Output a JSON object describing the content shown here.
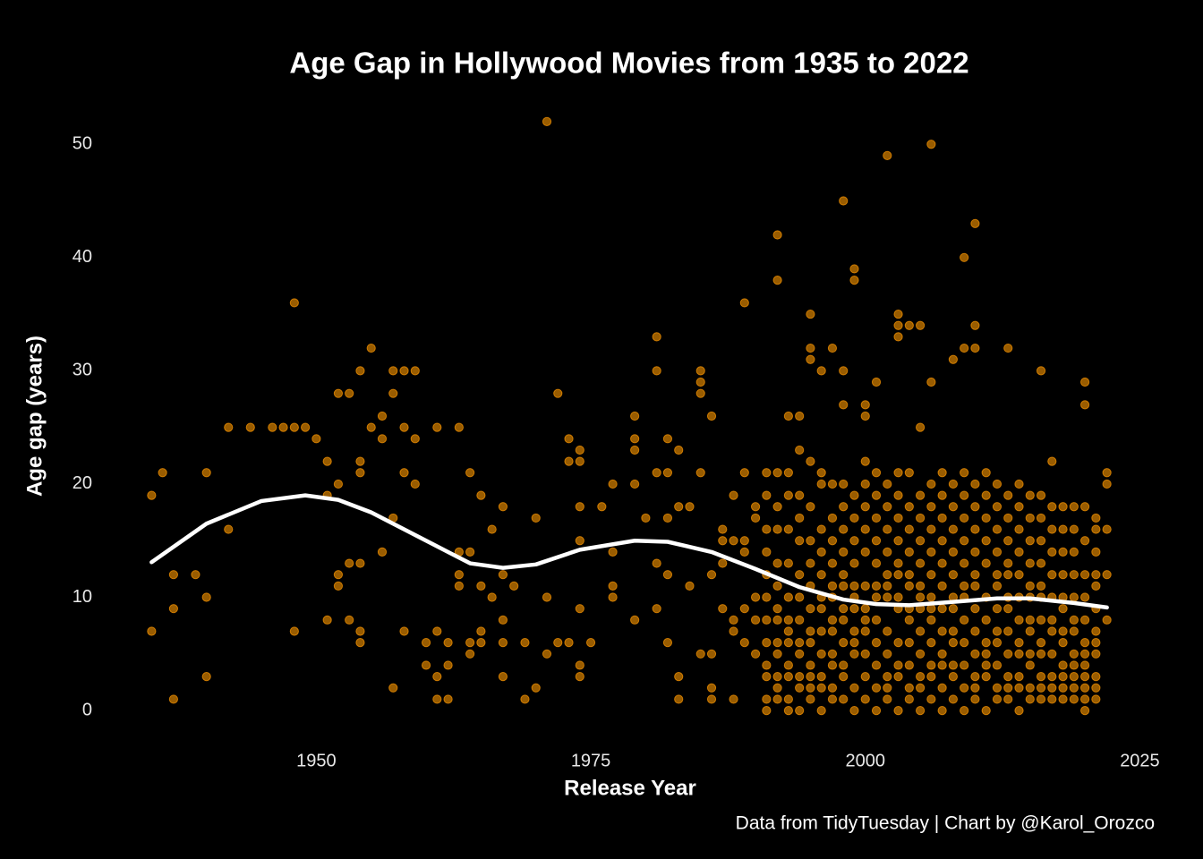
{
  "chart_data": {
    "type": "scatter",
    "title": "Age Gap in Hollywood Movies from 1935 to 2022",
    "x_label": "Release Year",
    "y_label": "Age gap (years)",
    "caption": "Data from TidyTuesday | Chart by @Karol_Orozco",
    "xlim": [
      1930.65,
      2026.35
    ],
    "ylim": [
      -2.6,
      54.6
    ],
    "xticks": [
      1950,
      1975,
      2000,
      2025
    ],
    "yticks": [
      0,
      10,
      20,
      30,
      40,
      50
    ],
    "series": [
      {
        "type": "scatter",
        "color": "#ff9900",
        "x": [
          1935,
          1935,
          1936,
          1937,
          1937,
          1937,
          1939,
          1940,
          1940,
          1940,
          1942,
          1942,
          1944,
          1946,
          1947,
          1948,
          1948,
          1948,
          1949,
          1950,
          1951,
          1951,
          1951,
          1952,
          1952,
          1952,
          1952,
          1953,
          1953,
          1953,
          1954,
          1954,
          1954,
          1954,
          1954,
          1954,
          1955,
          1955,
          1956,
          1956,
          1956,
          1957,
          1957,
          1957,
          1957,
          1958,
          1958,
          1958,
          1958,
          1959,
          1959,
          1959,
          1960,
          1960,
          1961,
          1961,
          1961,
          1961,
          1962,
          1962,
          1962,
          1963,
          1963,
          1963,
          1963,
          1964,
          1964,
          1964,
          1964,
          1965,
          1965,
          1965,
          1965,
          1966,
          1966,
          1967,
          1967,
          1967,
          1967,
          1967,
          1968,
          1969,
          1969,
          1970,
          1970,
          1971,
          1971,
          1971,
          1972,
          1972,
          1973,
          1973,
          1973,
          1974,
          1974,
          1974,
          1974,
          1974,
          1974,
          1974,
          1975,
          1976,
          1977,
          1977,
          1977,
          1977,
          1979,
          1979,
          1979,
          1979,
          1979,
          1980,
          1981,
          1981,
          1981,
          1981,
          1981,
          1982,
          1982,
          1982,
          1982,
          1982,
          1983,
          1983,
          1983,
          1983,
          1984,
          1984,
          1985,
          1985,
          1985,
          1985,
          1985,
          1986,
          1986,
          1986,
          1986,
          1986,
          1987,
          1987,
          1987,
          1987,
          1988,
          1988,
          1988,
          1988,
          1988,
          1989,
          1989,
          1989,
          1989,
          1989,
          1989,
          1990,
          1990,
          1990,
          1990,
          1990,
          1992,
          1992,
          1993,
          1994,
          1995,
          1995,
          1995,
          1996,
          1997,
          1998,
          1998,
          1998,
          1999,
          1999,
          2000,
          2000,
          2001,
          2002,
          2003,
          2003,
          2003,
          2004,
          2005,
          2005,
          2006,
          2006,
          2008,
          2009,
          2009,
          2010,
          2010,
          2010,
          2013,
          2016,
          2020,
          2020,
          2022,
          2022,
          2022,
          2022,
          2022,
          1991,
          1991,
          1991,
          1991,
          1991,
          1991,
          1991,
          1991,
          1991,
          1991,
          1991,
          1991,
          1992,
          1992,
          1992,
          1992,
          1992,
          1992,
          1992,
          1992,
          1992,
          1992,
          1992,
          1992,
          1993,
          1993,
          1993,
          1993,
          1993,
          1993,
          1993,
          1993,
          1993,
          1993,
          1993,
          1993,
          1994,
          1994,
          1994,
          1994,
          1994,
          1994,
          1994,
          1994,
          1994,
          1994,
          1994,
          1994,
          1995,
          1995,
          1995,
          1995,
          1995,
          1995,
          1995,
          1995,
          1995,
          1995,
          1995,
          1995,
          1996,
          1996,
          1996,
          1996,
          1996,
          1996,
          1996,
          1996,
          1996,
          1996,
          1996,
          1996,
          1997,
          1997,
          1997,
          1997,
          1997,
          1997,
          1997,
          1997,
          1997,
          1997,
          1997,
          1997,
          1998,
          1998,
          1998,
          1998,
          1998,
          1998,
          1998,
          1998,
          1998,
          1998,
          1998,
          1998,
          1999,
          1999,
          1999,
          1999,
          1999,
          1999,
          1999,
          1999,
          1999,
          1999,
          1999,
          1999,
          2000,
          2000,
          2000,
          2000,
          2000,
          2000,
          2000,
          2000,
          2000,
          2000,
          2000,
          2000,
          2001,
          2001,
          2001,
          2001,
          2001,
          2001,
          2001,
          2001,
          2001,
          2001,
          2001,
          2001,
          2002,
          2002,
          2002,
          2002,
          2002,
          2002,
          2002,
          2002,
          2002,
          2002,
          2002,
          2002,
          2003,
          2003,
          2003,
          2003,
          2003,
          2003,
          2003,
          2003,
          2003,
          2003,
          2003,
          2003,
          2004,
          2004,
          2004,
          2004,
          2004,
          2004,
          2004,
          2004,
          2004,
          2004,
          2004,
          2004,
          2005,
          2005,
          2005,
          2005,
          2005,
          2005,
          2005,
          2005,
          2005,
          2005,
          2005,
          2005,
          2006,
          2006,
          2006,
          2006,
          2006,
          2006,
          2006,
          2006,
          2006,
          2006,
          2006,
          2006,
          2007,
          2007,
          2007,
          2007,
          2007,
          2007,
          2007,
          2007,
          2007,
          2007,
          2007,
          2007,
          2008,
          2008,
          2008,
          2008,
          2008,
          2008,
          2008,
          2008,
          2008,
          2008,
          2008,
          2008,
          2009,
          2009,
          2009,
          2009,
          2009,
          2009,
          2009,
          2009,
          2009,
          2009,
          2009,
          2009,
          2010,
          2010,
          2010,
          2010,
          2010,
          2010,
          2010,
          2010,
          2010,
          2010,
          2010,
          2010,
          2011,
          2011,
          2011,
          2011,
          2011,
          2011,
          2011,
          2011,
          2011,
          2011,
          2011,
          2011,
          2012,
          2012,
          2012,
          2012,
          2012,
          2012,
          2012,
          2012,
          2012,
          2012,
          2012,
          2012,
          2013,
          2013,
          2013,
          2013,
          2013,
          2013,
          2013,
          2013,
          2013,
          2013,
          2013,
          2013,
          2014,
          2014,
          2014,
          2014,
          2014,
          2014,
          2014,
          2014,
          2014,
          2014,
          2014,
          2014,
          2015,
          2015,
          2015,
          2015,
          2015,
          2015,
          2015,
          2015,
          2015,
          2015,
          2015,
          2015,
          2016,
          2016,
          2016,
          2016,
          2016,
          2016,
          2016,
          2016,
          2016,
          2016,
          2016,
          2016,
          2017,
          2017,
          2017,
          2017,
          2017,
          2017,
          2017,
          2017,
          2017,
          2017,
          2017,
          2017,
          2018,
          2018,
          2018,
          2018,
          2018,
          2018,
          2018,
          2018,
          2018,
          2018,
          2018,
          2018,
          2019,
          2019,
          2019,
          2019,
          2019,
          2019,
          2019,
          2019,
          2019,
          2019,
          2019,
          2019,
          2020,
          2020,
          2020,
          2020,
          2020,
          2020,
          2020,
          2020,
          2020,
          2020,
          2020,
          2020,
          2021,
          2021,
          2021,
          2021,
          2021,
          2021,
          2021,
          2021,
          2021,
          2021,
          2021,
          2021
        ],
        "values": [
          7,
          19,
          21,
          12,
          9,
          1,
          12,
          21,
          10,
          3,
          25,
          16,
          25,
          25,
          25,
          25,
          36,
          7,
          25,
          24,
          22,
          19,
          8,
          28,
          20,
          12,
          11,
          28,
          13,
          8,
          30,
          22,
          21,
          13,
          7,
          6,
          32,
          25,
          26,
          24,
          14,
          30,
          28,
          17,
          2,
          30,
          25,
          21,
          7,
          30,
          24,
          20,
          6,
          4,
          25,
          7,
          3,
          1,
          6,
          4,
          1,
          25,
          14,
          12,
          11,
          21,
          14,
          6,
          5,
          19,
          11,
          7,
          6,
          16,
          10,
          18,
          12,
          8,
          6,
          3,
          11,
          6,
          1,
          17,
          2,
          52,
          10,
          5,
          28,
          6,
          24,
          22,
          6,
          23,
          22,
          18,
          15,
          9,
          4,
          3,
          6,
          18,
          20,
          14,
          11,
          10,
          26,
          24,
          23,
          20,
          8,
          17,
          33,
          30,
          21,
          13,
          9,
          24,
          21,
          17,
          12,
          6,
          23,
          18,
          3,
          1,
          18,
          11,
          30,
          29,
          28,
          21,
          5,
          26,
          12,
          5,
          2,
          1,
          16,
          15,
          13,
          9,
          19,
          15,
          8,
          7,
          1,
          36,
          21,
          15,
          14,
          9,
          6,
          18,
          17,
          10,
          8,
          5,
          42,
          38,
          26,
          26,
          35,
          32,
          31,
          30,
          32,
          45,
          30,
          27,
          39,
          38,
          27,
          26,
          29,
          49,
          35,
          34,
          33,
          34,
          34,
          25,
          50,
          29,
          31,
          40,
          32,
          43,
          34,
          32,
          32,
          30,
          29,
          27,
          21,
          20,
          16,
          12,
          8,
          21,
          19,
          16,
          14,
          12,
          10,
          8,
          6,
          4,
          3,
          1,
          0,
          21,
          18,
          16,
          13,
          11,
          9,
          8,
          6,
          5,
          3,
          2,
          1,
          21,
          19,
          16,
          13,
          10,
          8,
          7,
          6,
          4,
          3,
          1,
          0,
          23,
          19,
          17,
          15,
          12,
          10,
          8,
          6,
          5,
          3,
          2,
          0,
          22,
          18,
          15,
          13,
          11,
          9,
          7,
          6,
          4,
          3,
          2,
          1,
          21,
          20,
          16,
          14,
          12,
          10,
          9,
          7,
          5,
          3,
          2,
          0,
          20,
          17,
          15,
          13,
          11,
          10,
          8,
          7,
          5,
          4,
          2,
          1,
          20,
          18,
          16,
          14,
          12,
          11,
          9,
          8,
          6,
          4,
          3,
          1,
          19,
          17,
          15,
          13,
          11,
          10,
          9,
          7,
          6,
          5,
          2,
          0,
          22,
          20,
          18,
          16,
          14,
          11,
          9,
          8,
          7,
          5,
          3,
          1,
          21,
          19,
          17,
          15,
          13,
          11,
          10,
          8,
          6,
          4,
          2,
          0,
          20,
          18,
          16,
          14,
          12,
          11,
          10,
          7,
          5,
          3,
          2,
          1,
          21,
          19,
          17,
          15,
          13,
          12,
          10,
          9,
          6,
          4,
          3,
          0,
          21,
          18,
          16,
          14,
          12,
          11,
          9,
          8,
          6,
          4,
          2,
          1,
          19,
          17,
          15,
          13,
          11,
          10,
          9,
          7,
          5,
          3,
          2,
          0,
          20,
          18,
          16,
          14,
          12,
          10,
          9,
          8,
          6,
          4,
          3,
          1,
          21,
          19,
          17,
          15,
          13,
          11,
          9,
          7,
          5,
          4,
          2,
          0,
          20,
          18,
          16,
          14,
          12,
          10,
          9,
          7,
          6,
          4,
          3,
          1,
          21,
          19,
          17,
          15,
          13,
          11,
          10,
          8,
          6,
          4,
          2,
          0,
          20,
          18,
          16,
          14,
          12,
          11,
          9,
          7,
          5,
          3,
          2,
          1,
          21,
          19,
          17,
          15,
          13,
          10,
          8,
          6,
          5,
          4,
          3,
          0,
          20,
          18,
          16,
          14,
          12,
          11,
          9,
          7,
          6,
          4,
          2,
          1,
          19,
          17,
          15,
          13,
          12,
          10,
          9,
          7,
          5,
          3,
          2,
          1,
          20,
          18,
          16,
          14,
          12,
          10,
          8,
          6,
          5,
          3,
          2,
          0,
          19,
          17,
          15,
          13,
          11,
          10,
          8,
          7,
          5,
          4,
          2,
          1,
          19,
          17,
          15,
          13,
          11,
          10,
          8,
          6,
          5,
          3,
          2,
          1,
          22,
          18,
          16,
          14,
          12,
          10,
          8,
          7,
          5,
          3,
          2,
          1,
          18,
          16,
          14,
          12,
          10,
          9,
          7,
          6,
          4,
          3,
          2,
          1,
          18,
          16,
          14,
          12,
          10,
          8,
          7,
          5,
          4,
          3,
          2,
          1,
          18,
          15,
          12,
          10,
          8,
          6,
          5,
          4,
          3,
          2,
          1,
          0,
          17,
          16,
          14,
          12,
          11,
          9,
          7,
          6,
          5,
          3,
          2,
          1
        ]
      },
      {
        "type": "line",
        "color": "#ffffff",
        "x": [
          1935,
          1940,
          1945,
          1949,
          1952,
          1955,
          1960,
          1964,
          1967,
          1970,
          1974,
          1979,
          1982,
          1986,
          1990,
          1994,
          1998,
          2001,
          2004,
          2008,
          2012,
          2015,
          2019,
          2022
        ],
        "values": [
          13.1,
          16.5,
          18.5,
          19,
          18.6,
          17.5,
          15,
          13,
          12.6,
          12.9,
          14.2,
          15,
          14.9,
          14,
          12.5,
          10.9,
          9.8,
          9.4,
          9.3,
          9.6,
          9.9,
          9.9,
          9.5,
          9.1
        ]
      }
    ]
  }
}
